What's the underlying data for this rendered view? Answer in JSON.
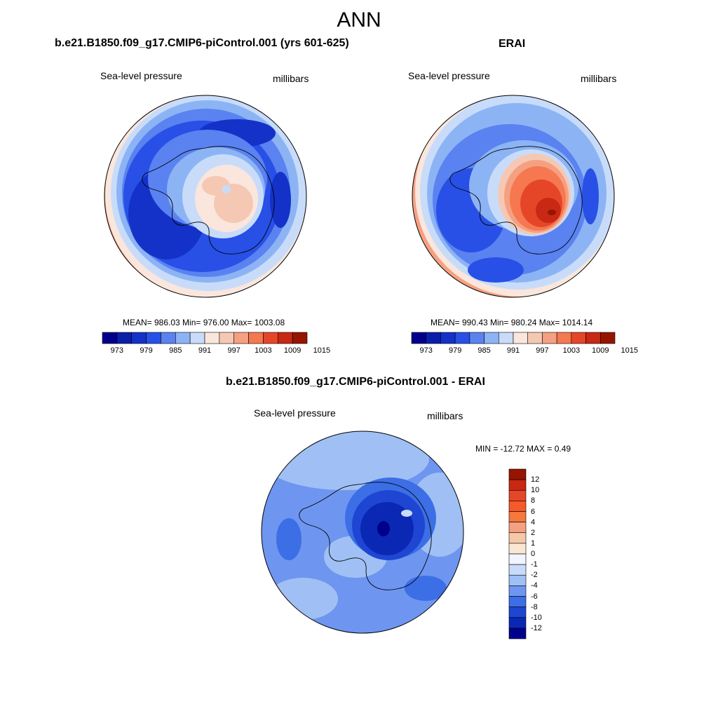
{
  "figure": {
    "title": "ANN"
  },
  "panels": [
    {
      "title": "b.e21.B1850.f09_g17.CMIP6-piControl.001 (yrs 601-625)",
      "left_label": "Sea-level pressure",
      "right_label": "millibars",
      "stats": "MEAN= 986.03  Min= 976.00  Max= 1003.08"
    },
    {
      "title": "ERAI",
      "left_label": "Sea-level pressure",
      "right_label": "millibars",
      "stats": "MEAN= 990.43  Min= 980.24  Max= 1014.14"
    },
    {
      "title": "b.e21.B1850.f09_g17.CMIP6-piControl.001 - ERAI",
      "left_label": "Sea-level pressure",
      "right_label": "millibars",
      "stats": "MIN = -12.72 MAX =   0.49"
    }
  ],
  "colorbars": {
    "abs": {
      "labels": [
        "973",
        "979",
        "985",
        "991",
        "997",
        "1003",
        "1009",
        "1015"
      ],
      "colors": [
        "#00008c",
        "#0a1ea8",
        "#1432c8",
        "#2850e6",
        "#5a82f0",
        "#8cb4f5",
        "#c8dcfa",
        "#fae6dc",
        "#f5c8b4",
        "#f5a082",
        "#f57850",
        "#e64628",
        "#c82814",
        "#961400"
      ]
    },
    "diff": {
      "labels": [
        "12",
        "10",
        "8",
        "6",
        "4",
        "2",
        "1",
        "0",
        "-1",
        "-2",
        "-4",
        "-6",
        "-8",
        "-10",
        "-12"
      ],
      "colors": [
        "#961400",
        "#c82814",
        "#e64628",
        "#f55a28",
        "#f5783c",
        "#f5a082",
        "#f5c8aa",
        "#fae6d2",
        "#f0f5ff",
        "#c8dcfa",
        "#a0c0f5",
        "#6e96f0",
        "#3c6ee6",
        "#1e46d2",
        "#0a28b4",
        "#00008c"
      ]
    }
  }
}
